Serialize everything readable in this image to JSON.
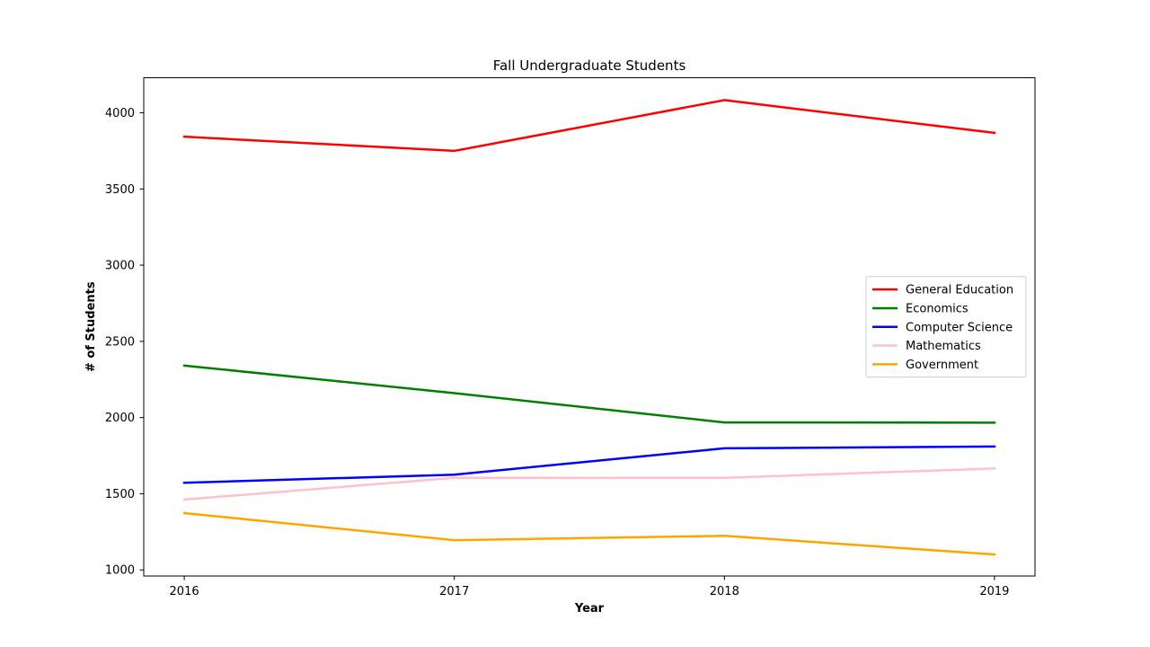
{
  "chart_data": {
    "type": "line",
    "title": "Fall Undergraduate Students",
    "xlabel": "Year",
    "ylabel": "# of Students",
    "x": [
      "2016",
      "2017",
      "2018",
      "2019"
    ],
    "xlim": [
      2015.85,
      2019.15
    ],
    "ylim": [
      960,
      4230
    ],
    "yticks": [
      1000,
      1500,
      2000,
      2500,
      3000,
      3500,
      4000
    ],
    "grid": false,
    "legend_position": "center-right",
    "series": [
      {
        "name": "General Education",
        "color": "#ff0000",
        "values": [
          3843,
          3750,
          4083,
          3868
        ]
      },
      {
        "name": "Economics",
        "color": "#008000",
        "values": [
          2341,
          2160,
          1968,
          1966
        ]
      },
      {
        "name": "Computer Science",
        "color": "#0000ff",
        "values": [
          1572,
          1625,
          1798,
          1810
        ]
      },
      {
        "name": "Mathematics",
        "color": "#ffc0cb",
        "values": [
          1462,
          1604,
          1604,
          1666
        ]
      },
      {
        "name": "Government",
        "color": "#ffa500",
        "values": [
          1373,
          1195,
          1224,
          1101
        ]
      }
    ]
  }
}
